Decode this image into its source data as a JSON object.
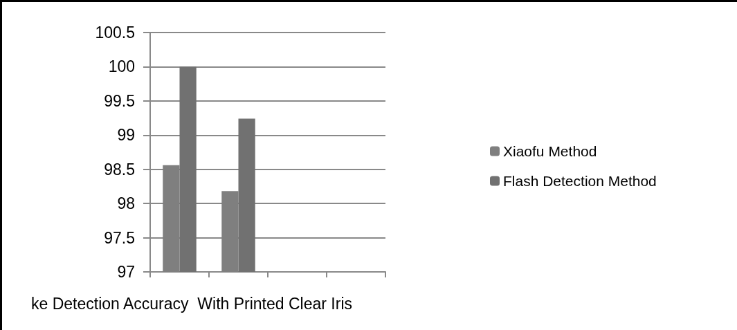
{
  "chart_data": {
    "type": "bar",
    "categories": [
      null,
      null,
      null,
      null
    ],
    "xlabel": "ke Detection Accuracy  With Printed Clear Iris",
    "series": [
      {
        "name": "Xiaofu Method",
        "color": "#7f7f7f",
        "values": [
          98.56,
          98.18,
          null,
          null
        ]
      },
      {
        "name": "Flash Detection Method",
        "color": "#717171",
        "values": [
          100,
          99.24,
          null,
          null
        ]
      }
    ],
    "ylim": [
      97,
      100.5
    ],
    "yticks": [
      97,
      97.5,
      98,
      98.5,
      99,
      99.5,
      100,
      100.5
    ],
    "grid": "y",
    "legend": "right"
  }
}
